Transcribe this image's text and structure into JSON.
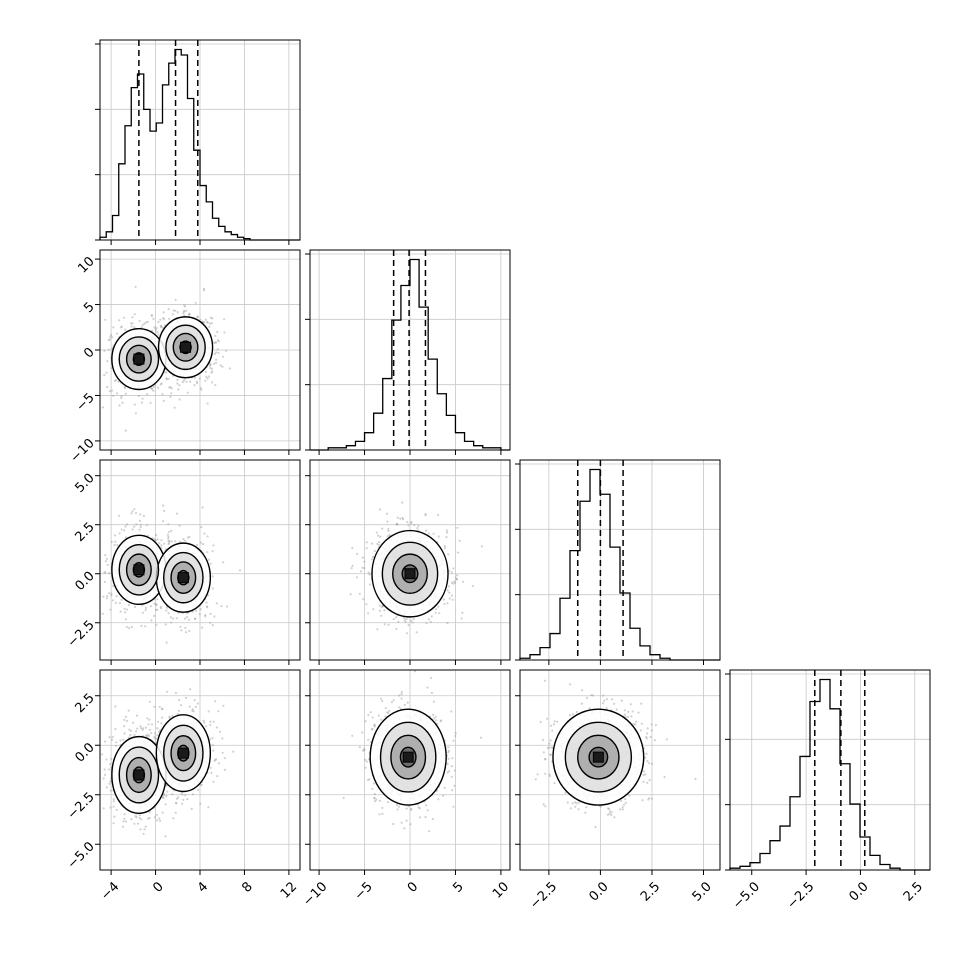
{
  "figure": {
    "type": "corner-plot",
    "grid": true
  },
  "chart_data": {
    "type": "corner",
    "n_params": 4,
    "x_ticks": [
      [
        -4,
        0,
        4,
        8,
        12
      ],
      [
        -10,
        -5,
        0,
        5,
        10
      ],
      [
        -2.5,
        0.0,
        2.5,
        5.0
      ],
      [
        -5.0,
        -2.5,
        0.0,
        2.5
      ]
    ],
    "x_tick_labels": [
      [
        "−4",
        "0",
        "4",
        "8",
        "12"
      ],
      [
        "−10",
        "−5",
        "0",
        "5",
        "10"
      ],
      [
        "−2.5",
        "0.0",
        "2.5",
        "5.0"
      ],
      [
        "−5.0",
        "−2.5",
        "0.0",
        "2.5"
      ]
    ],
    "x_ranges": [
      [
        -5,
        13
      ],
      [
        -11,
        11
      ],
      [
        -3.9,
        5.8
      ],
      [
        -6.0,
        3.2
      ]
    ],
    "y_ticks": [
      [],
      [
        -10,
        -5,
        0,
        5,
        10
      ],
      [
        -2.5,
        0.0,
        2.5,
        5.0
      ],
      [
        -5.0,
        -2.5,
        0.0,
        2.5
      ]
    ],
    "y_tick_labels": [
      [],
      [
        "−10",
        "−5",
        "0",
        "5",
        "10"
      ],
      [
        "−2.5",
        "0.0",
        "2.5",
        "5.0"
      ],
      [
        "−5.0",
        "−2.5",
        "0.0",
        "2.5"
      ]
    ],
    "y_ranges": [
      [
        -5,
        13
      ],
      [
        -11,
        11
      ],
      [
        -4.4,
        5.8
      ],
      [
        -6.3,
        3.8
      ]
    ],
    "quantiles": [
      [
        -1.5,
        1.8,
        3.8
      ],
      [
        -1.8,
        -0.1,
        1.7
      ],
      [
        -1.1,
        0.0,
        1.1
      ],
      [
        -2.1,
        -0.9,
        0.2
      ]
    ],
    "histograms": [
      {
        "edges": [
          -5,
          13
        ],
        "counts": [
          1,
          3,
          9,
          28,
          42,
          56,
          61,
          48,
          40,
          43,
          57,
          65,
          70,
          68,
          52,
          33,
          20,
          14,
          8,
          5,
          3,
          2,
          1,
          0.5,
          0,
          0,
          0,
          0,
          0,
          0,
          0,
          0
        ]
      },
      {
        "edges": [
          -11,
          11
        ],
        "counts": [
          0,
          0,
          1,
          1,
          2,
          4,
          8,
          17,
          33,
          60,
          76,
          88,
          66,
          42,
          26,
          16,
          8,
          4,
          2,
          1,
          1,
          0
        ]
      },
      {
        "edges": [
          -3.9,
          5.8
        ],
        "counts": [
          1,
          3,
          7,
          15,
          35,
          62,
          90,
          108,
          94,
          64,
          38,
          18,
          8,
          3,
          1,
          0,
          0,
          0,
          0,
          0
        ]
      },
      {
        "edges": [
          -6.0,
          3.2
        ],
        "counts": [
          1,
          2,
          4,
          9,
          16,
          24,
          40,
          62,
          92,
          104,
          88,
          58,
          36,
          18,
          8,
          3,
          1,
          0,
          0,
          0
        ]
      }
    ],
    "marginal_means": [
      {
        "mix": [
          [
            0.35,
            -1.5,
            1.1
          ],
          [
            0.65,
            2.8,
            1.3
          ]
        ]
      },
      {
        "mix": [
          [
            1.0,
            -0.1,
            1.9
          ]
        ]
      },
      {
        "mix": [
          [
            1.0,
            0.0,
            1.0
          ]
        ]
      },
      {
        "mix": [
          [
            1.0,
            -0.9,
            1.1
          ]
        ]
      }
    ],
    "joint_centers": {
      "1_0": [
        [
          -1.5,
          -1.0
        ],
        [
          2.7,
          0.3
        ]
      ],
      "2_0": [
        [
          -1.5,
          0.2
        ],
        [
          2.5,
          -0.2
        ]
      ],
      "2_1": [
        [
          0.0,
          0.0
        ]
      ],
      "3_0": [
        [
          -1.5,
          -1.5
        ],
        [
          2.5,
          -0.4
        ]
      ],
      "3_1": [
        [
          -0.2,
          -0.6
        ]
      ],
      "3_2": [
        [
          -0.1,
          -0.6
        ]
      ]
    }
  }
}
